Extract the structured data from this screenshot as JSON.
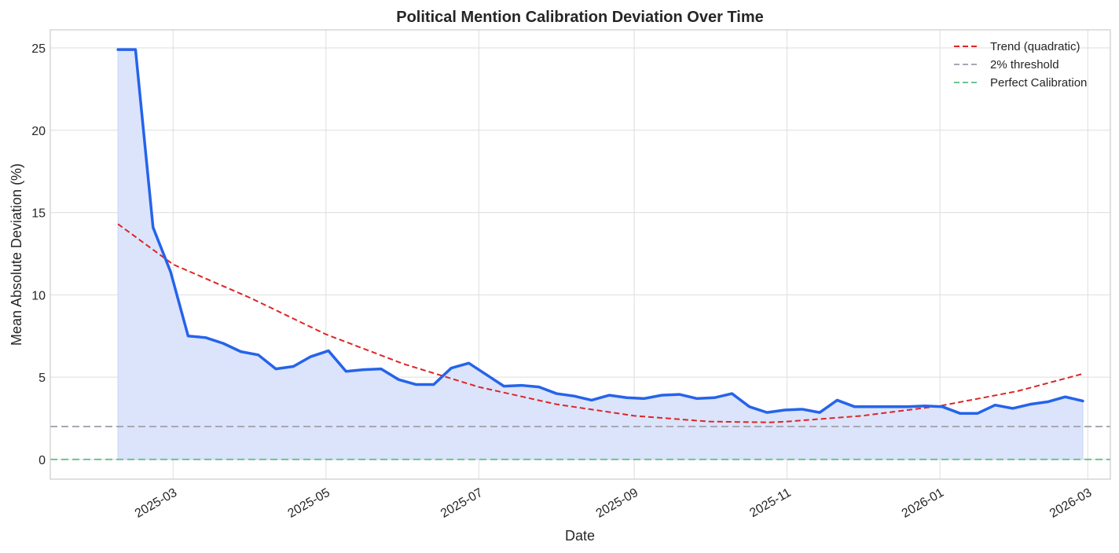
{
  "chart_data": {
    "type": "line",
    "title": "Political Mention Calibration Deviation Over Time",
    "xlabel": "Date",
    "ylabel": "Mean Absolute Deviation (%)",
    "x_tick_labels": [
      "2025-03",
      "2025-05",
      "2025-07",
      "2025-09",
      "2025-11",
      "2026-01",
      "2026-03"
    ],
    "x_tick_dates": [
      "2025-03-01",
      "2025-05-01",
      "2025-07-01",
      "2025-09-01",
      "2025-11-01",
      "2026-01-01",
      "2026-03-01"
    ],
    "y_ticks": [
      0,
      5,
      10,
      15,
      20,
      25
    ],
    "xlim": [
      "2025-01-11",
      "2026-03-10"
    ],
    "ylim": [
      -1.2,
      26.1
    ],
    "grid": true,
    "legend_position": "top-right",
    "series": [
      {
        "name": "",
        "style": "solid line with area fill",
        "color": "#2563eb",
        "fill_color": "#dbe4fb",
        "x": [
          "2025-02-07",
          "2025-02-14",
          "2025-02-21",
          "2025-02-28",
          "2025-03-07",
          "2025-03-14",
          "2025-03-21",
          "2025-03-28",
          "2025-04-04",
          "2025-04-11",
          "2025-04-18",
          "2025-04-25",
          "2025-05-02",
          "2025-05-09",
          "2025-05-16",
          "2025-05-23",
          "2025-05-30",
          "2025-06-06",
          "2025-06-13",
          "2025-06-20",
          "2025-06-27",
          "2025-07-04",
          "2025-07-11",
          "2025-07-18",
          "2025-07-25",
          "2025-08-01",
          "2025-08-08",
          "2025-08-15",
          "2025-08-22",
          "2025-08-29",
          "2025-09-05",
          "2025-09-12",
          "2025-09-19",
          "2025-09-26",
          "2025-10-03",
          "2025-10-10",
          "2025-10-17",
          "2025-10-24",
          "2025-10-31",
          "2025-11-07",
          "2025-11-14",
          "2025-11-21",
          "2025-11-28",
          "2025-12-05",
          "2025-12-12",
          "2025-12-19",
          "2025-12-26",
          "2026-01-02",
          "2026-01-09",
          "2026-01-16",
          "2026-01-23",
          "2026-01-30",
          "2026-02-06",
          "2026-02-13",
          "2026-02-20",
          "2026-02-27"
        ],
        "values": [
          24.9,
          24.9,
          14.1,
          11.4,
          7.5,
          7.4,
          7.05,
          6.55,
          6.35,
          5.5,
          5.65,
          6.25,
          6.6,
          5.35,
          5.45,
          5.5,
          4.85,
          4.55,
          4.55,
          5.55,
          5.85,
          5.15,
          4.45,
          4.5,
          4.4,
          4.0,
          3.85,
          3.6,
          3.9,
          3.75,
          3.7,
          3.9,
          3.95,
          3.7,
          3.75,
          4.0,
          3.2,
          2.85,
          3.0,
          3.05,
          2.85,
          3.6,
          3.2,
          3.2,
          3.2,
          3.2,
          3.25,
          3.2,
          2.8,
          2.8,
          3.3,
          3.1,
          3.35,
          3.5,
          3.8,
          3.55
        ]
      },
      {
        "name": "Trend (quadratic)",
        "style": "dashed",
        "color": "#dc2626",
        "x": [
          "2025-02-07",
          "2025-03-01",
          "2025-04-01",
          "2025-05-01",
          "2025-06-01",
          "2025-07-01",
          "2025-08-01",
          "2025-09-01",
          "2025-10-01",
          "2025-10-25",
          "2025-11-01",
          "2025-12-01",
          "2026-01-01",
          "2026-02-01",
          "2026-02-27"
        ],
        "values": [
          14.3,
          11.85,
          9.8,
          7.6,
          5.8,
          4.4,
          3.35,
          2.65,
          2.3,
          2.25,
          2.3,
          2.65,
          3.25,
          4.15,
          5.2
        ]
      },
      {
        "name": "2% threshold",
        "style": "dashed",
        "color": "#a8a8b4",
        "constant": 2
      },
      {
        "name": "Perfect Calibration",
        "style": "dashed",
        "color": "#6cc392",
        "constant": 0
      }
    ]
  }
}
